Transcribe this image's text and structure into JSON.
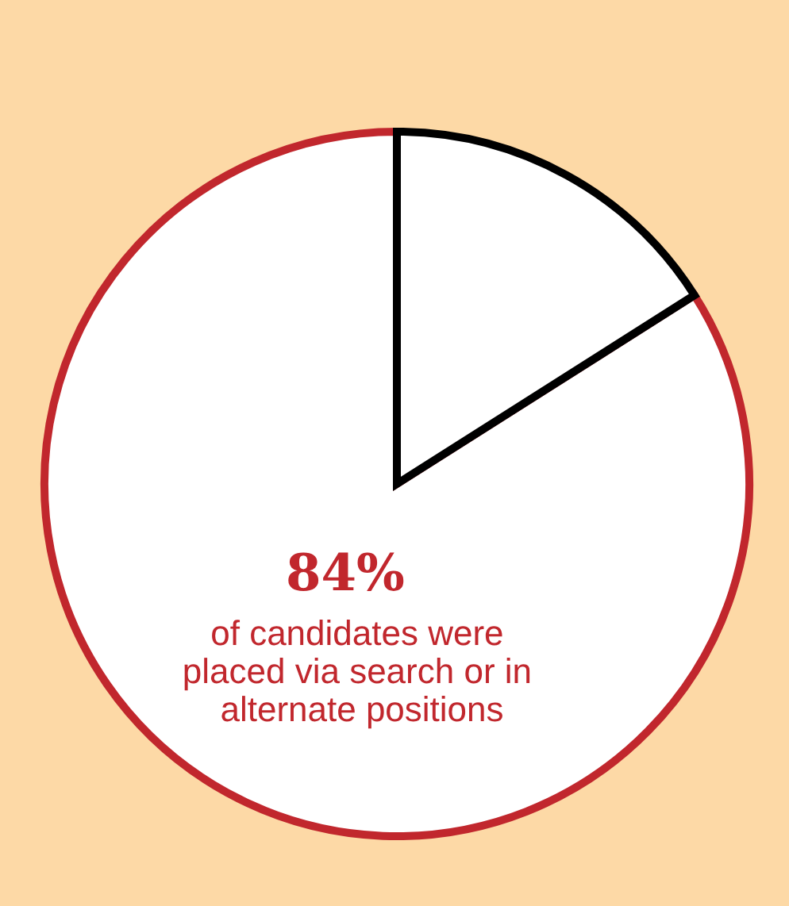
{
  "chart_data": {
    "type": "pie",
    "categories": [
      null,
      null
    ],
    "values": [
      84,
      16
    ],
    "colors": [
      "#ffffff",
      "#ffffff"
    ],
    "value_labels": [
      "84%",
      null
    ],
    "annotations": [
      "of candidates were placed via search or in alternate positions"
    ]
  }
}
